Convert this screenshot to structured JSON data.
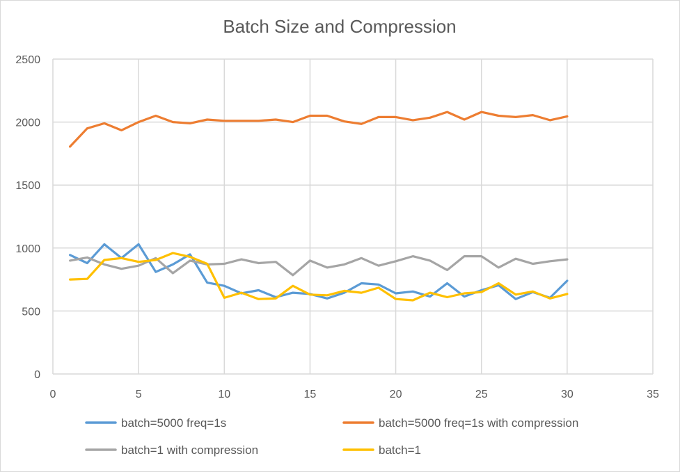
{
  "chart_data": {
    "type": "line",
    "title": "Batch Size and Compression",
    "xlabel": "",
    "ylabel": "",
    "xlim": [
      0,
      35
    ],
    "ylim": [
      0,
      2500
    ],
    "x_ticks": [
      "0",
      "5",
      "10",
      "15",
      "20",
      "25",
      "30",
      "35"
    ],
    "y_ticks": [
      "0",
      "500",
      "1000",
      "1500",
      "2000",
      "2500"
    ],
    "x": [
      1,
      2,
      3,
      4,
      5,
      6,
      7,
      8,
      9,
      10,
      11,
      12,
      13,
      14,
      15,
      16,
      17,
      18,
      19,
      20,
      21,
      22,
      23,
      24,
      25,
      26,
      27,
      28,
      29,
      30
    ],
    "grid": "vertical and horizontal",
    "legend_position": "bottom",
    "series": [
      {
        "name": "batch=5000 freq=1s",
        "color": "#5b9bd5",
        "values": [
          945,
          880,
          1030,
          920,
          1030,
          810,
          870,
          950,
          725,
          700,
          640,
          665,
          610,
          645,
          635,
          600,
          645,
          720,
          710,
          640,
          655,
          615,
          720,
          615,
          665,
          705,
          595,
          650,
          605,
          740
        ]
      },
      {
        "name": "batch=5000 freq=1s with compression",
        "color": "#ed7d31",
        "values": [
          1805,
          1950,
          1990,
          1935,
          2000,
          2050,
          2000,
          1990,
          2020,
          2010,
          2010,
          2010,
          2020,
          2000,
          2050,
          2050,
          2005,
          1985,
          2040,
          2040,
          2015,
          2035,
          2080,
          2020,
          2080,
          2050,
          2040,
          2055,
          2015,
          2045
        ]
      },
      {
        "name": "batch=1 with compression",
        "color": "#a5a5a5",
        "values": [
          900,
          925,
          870,
          835,
          860,
          920,
          800,
          900,
          870,
          875,
          910,
          880,
          890,
          785,
          900,
          845,
          870,
          920,
          860,
          895,
          935,
          900,
          825,
          935,
          935,
          845,
          915,
          875,
          895,
          910
        ]
      },
      {
        "name": "batch=1",
        "color": "#ffc000",
        "values": [
          750,
          755,
          905,
          920,
          890,
          905,
          960,
          930,
          875,
          605,
          645,
          595,
          600,
          700,
          630,
          625,
          660,
          645,
          685,
          595,
          585,
          645,
          610,
          640,
          650,
          720,
          630,
          655,
          600,
          635
        ]
      }
    ]
  }
}
